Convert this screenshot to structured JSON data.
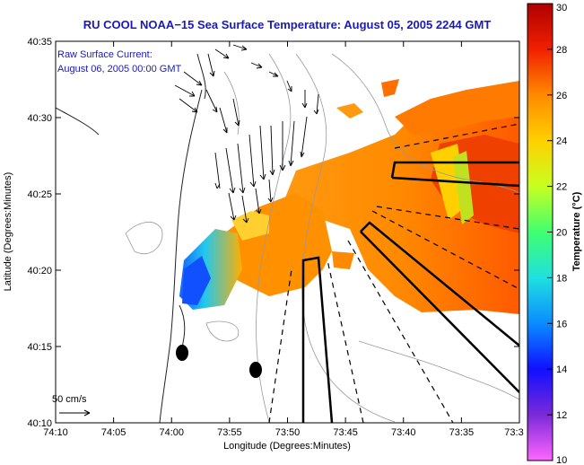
{
  "title": "RU COOL  NOAA−15  Sea Surface Temperature:  August 05, 2005 2244 GMT",
  "legend": {
    "line1": "Raw Surface Current:",
    "line2": "August 06, 2005 00:00 GMT"
  },
  "scale_label": "50 cm/s",
  "axes": {
    "xlabel": "Longitude (Degrees:Minutes)",
    "ylabel": "Latitude (Degrees:Minutes)",
    "x_ticks": [
      "74:10",
      "74:05",
      "74:00",
      "73:55",
      "73:50",
      "73:45",
      "73:40",
      "73:35",
      "73:3"
    ],
    "y_ticks": [
      "40:35",
      "40:30",
      "40:25",
      "40:20",
      "40:15",
      "40:10"
    ]
  },
  "colorbar": {
    "label": "Temperature (°C)",
    "ticks": [
      "30",
      "28",
      "26",
      "24",
      "22",
      "20",
      "18",
      "16",
      "14",
      "12",
      "10"
    ],
    "min": 10,
    "max": 30
  }
}
